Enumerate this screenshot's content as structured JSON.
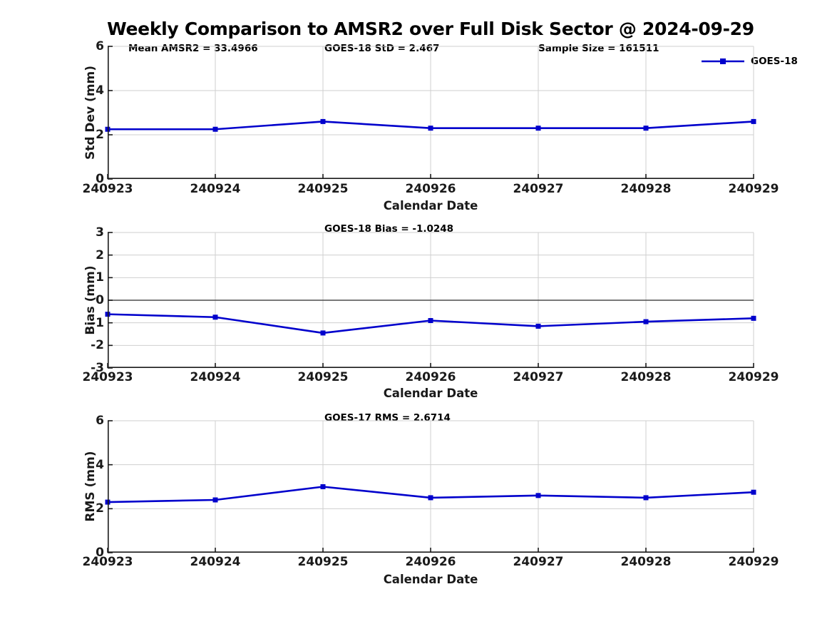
{
  "figure": {
    "title": "Weekly Comparison to AMSR2 over Full Disk Sector @ 2024-09-29",
    "background": "#ffffff"
  },
  "legend": {
    "label": "GOES-18",
    "position": "top-right"
  },
  "colors": {
    "line": "#0000cc",
    "grid": "#cfcfcf",
    "zero_line": "#4d4d4d",
    "axis": "#1a1a1a",
    "text": "#000000"
  },
  "chart_data": [
    {
      "name": "std-dev",
      "type": "line",
      "title": "Weekly Comparison to AMSR2 over Full Disk Sector @ 2024-09-29",
      "annotations": [
        "Mean AMSR2 = 33.4966",
        "GOES-18 StD = 2.467",
        "Sample Size = 161511"
      ],
      "categories": [
        "240923",
        "240924",
        "240925",
        "240926",
        "240927",
        "240928",
        "240929"
      ],
      "series": [
        {
          "name": "GOES-18",
          "values": [
            2.25,
            2.25,
            2.6,
            2.3,
            2.3,
            2.3,
            2.6
          ]
        }
      ],
      "xlabel": "Calendar Date",
      "ylabel": "Std Dev (mm)",
      "ylim": [
        0,
        6
      ],
      "yticks": [
        0,
        2,
        4,
        6
      ],
      "grid": true,
      "zero_line": false,
      "legend_position": "upper right outside"
    },
    {
      "name": "bias",
      "type": "line",
      "annotations": [
        "GOES-18 Bias  = -1.0248"
      ],
      "categories": [
        "240923",
        "240924",
        "240925",
        "240926",
        "240927",
        "240928",
        "240929"
      ],
      "series": [
        {
          "name": "GOES-18",
          "values": [
            -0.62,
            -0.75,
            -1.45,
            -0.9,
            -1.15,
            -0.95,
            -0.8
          ]
        }
      ],
      "xlabel": "Calendar Date",
      "ylabel": "Bias (mm)",
      "ylim": [
        -3,
        3
      ],
      "yticks": [
        -3,
        -2,
        -1,
        0,
        1,
        2,
        3
      ],
      "grid": true,
      "zero_line": true
    },
    {
      "name": "rms",
      "type": "line",
      "annotations": [
        "GOES-17 RMS = 2.6714"
      ],
      "categories": [
        "240923",
        "240924",
        "240925",
        "240926",
        "240927",
        "240928",
        "240929"
      ],
      "series": [
        {
          "name": "GOES-18",
          "values": [
            2.3,
            2.4,
            3.0,
            2.5,
            2.6,
            2.5,
            2.75
          ]
        }
      ],
      "xlabel": "Calendar Date",
      "ylabel": "RMS (mm)",
      "ylim": [
        0,
        6
      ],
      "yticks": [
        0,
        2,
        4,
        6
      ],
      "grid": true,
      "zero_line": false
    }
  ]
}
